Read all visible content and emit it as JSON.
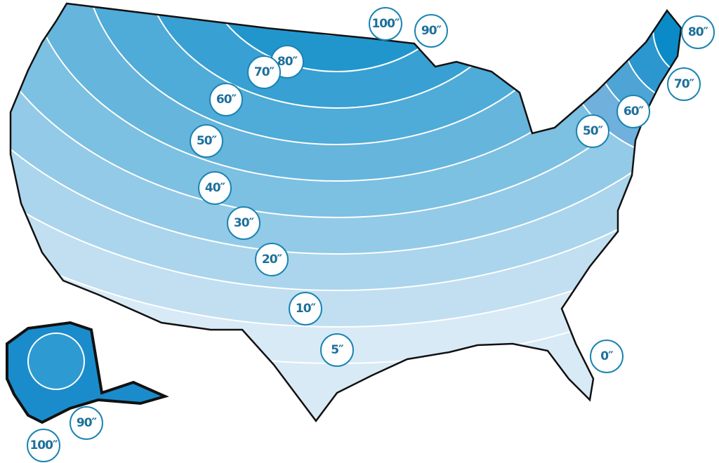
{
  "map": {
    "colors": {
      "darkest": "#0a8bc8",
      "lightest": "#d8eaf6",
      "contour": "#ffffff",
      "border": "#111111",
      "label_ring": "#1b84b3",
      "label_text": "#1d6f9a"
    },
    "contour_labels": {
      "conus": [
        "100″",
        "90″",
        "80″",
        "70″",
        "60″",
        "50″",
        "40″",
        "30″",
        "20″",
        "10″",
        "5″",
        "0″"
      ],
      "northeast": [
        "80″",
        "70″",
        "60″",
        "50″"
      ],
      "alaska": [
        "90″",
        "100″"
      ]
    }
  }
}
